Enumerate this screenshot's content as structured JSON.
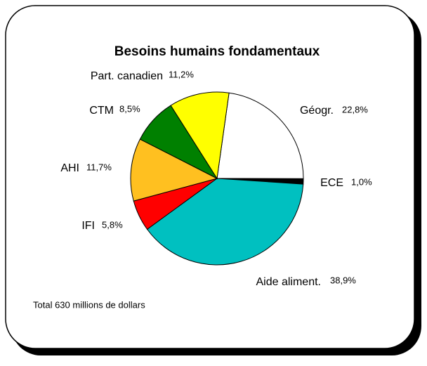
{
  "chart_data": {
    "type": "pie",
    "title": "Besoins humains fondamentaux",
    "note": "Total 630 millions de dollars",
    "categories": [
      "Géogr.",
      "ECE",
      "Aide aliment.",
      "IFI",
      "AHI",
      "CTM",
      "Part. canadien"
    ],
    "values": [
      22.8,
      1.0,
      38.9,
      5.8,
      11.7,
      8.5,
      11.2
    ],
    "value_labels": [
      "22,8%",
      "1,0%",
      "38,9%",
      "5,8%",
      "11,7%",
      "8,5%",
      "11,2%"
    ],
    "colors": [
      "#ffffff",
      "#000000",
      "#00c0c0",
      "#ff0000",
      "#ffc020",
      "#008000",
      "#ffff00"
    ]
  }
}
